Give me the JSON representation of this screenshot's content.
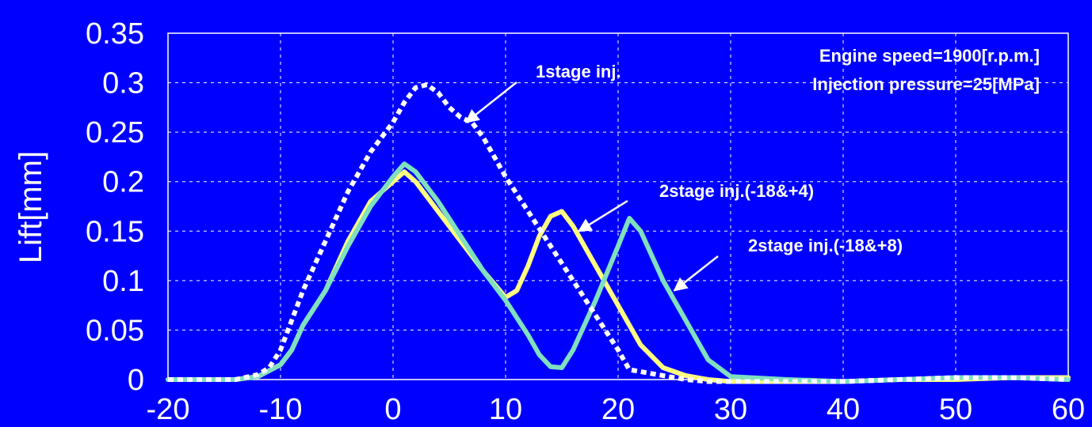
{
  "chart_data": {
    "type": "line",
    "title": "",
    "xlabel": "",
    "ylabel": "Lift[mm]",
    "xlim": [
      -20,
      60
    ],
    "ylim": [
      0,
      0.35
    ],
    "xticks": [
      -20,
      -10,
      0,
      10,
      20,
      30,
      40,
      50,
      60
    ],
    "yticks": [
      0,
      0.05,
      0.1,
      0.15,
      0.2,
      0.25,
      0.3,
      0.35
    ],
    "xtick_labels": [
      "-20",
      "-10",
      "0",
      "10",
      "20",
      "30",
      "40",
      "50",
      "60"
    ],
    "ytick_labels": [
      "0",
      "0.05",
      "0.1",
      "0.15",
      "0.2",
      "0.25",
      "0.3",
      "0.35"
    ],
    "grid": true,
    "conditions": [
      "Engine speed=1900[r.p.m.]",
      "Injection pressure=25[MPa]"
    ],
    "series": [
      {
        "name": "1stage inj.",
        "color": "#ffffff",
        "dashed": true,
        "x": [
          -20,
          -16,
          -14,
          -12,
          -11,
          -10,
          -9,
          -8,
          -6,
          -4,
          -2,
          0,
          1,
          2,
          3,
          4,
          5,
          6,
          7,
          8,
          9,
          10,
          12,
          14,
          16,
          18,
          20,
          21,
          22,
          24,
          26,
          28,
          30,
          35,
          40,
          45,
          50,
          55,
          60
        ],
        "y": [
          0.0,
          0.0,
          0.0,
          0.005,
          0.012,
          0.03,
          0.06,
          0.09,
          0.14,
          0.19,
          0.23,
          0.26,
          0.28,
          0.295,
          0.298,
          0.29,
          0.275,
          0.265,
          0.26,
          0.245,
          0.225,
          0.205,
          0.17,
          0.135,
          0.1,
          0.065,
          0.03,
          0.01,
          0.008,
          0.004,
          0.0,
          -0.002,
          -0.002,
          -0.002,
          -0.002,
          0.0,
          0.002,
          0.002,
          0.0
        ]
      },
      {
        "name": "2stage inj.(-18&+4)",
        "color": "#ffff80",
        "dashed": false,
        "x": [
          -20,
          -16,
          -14,
          -12,
          -10,
          -9,
          -8,
          -6,
          -4,
          -2,
          0,
          1,
          2,
          4,
          6,
          8,
          10,
          11,
          12,
          13,
          14,
          15,
          16,
          18,
          20,
          22,
          24,
          26,
          28,
          30,
          35,
          40,
          45,
          50,
          55,
          60
        ],
        "y": [
          0.0,
          0.0,
          0.0,
          0.003,
          0.015,
          0.03,
          0.055,
          0.09,
          0.14,
          0.18,
          0.2,
          0.21,
          0.2,
          0.17,
          0.14,
          0.11,
          0.083,
          0.09,
          0.115,
          0.145,
          0.165,
          0.17,
          0.155,
          0.115,
          0.075,
          0.035,
          0.012,
          0.004,
          0.0,
          -0.002,
          -0.002,
          -0.002,
          0.0,
          0.0,
          0.002,
          0.002
        ]
      },
      {
        "name": "2stage inj.(-18&+8)",
        "color": "#7fe0c0",
        "dashed": false,
        "x": [
          -20,
          -16,
          -14,
          -12,
          -10,
          -9,
          -8,
          -6,
          -4,
          -2,
          0,
          1,
          2,
          4,
          6,
          8,
          10,
          12,
          13,
          14,
          15,
          16,
          18,
          20,
          21,
          22,
          24,
          26,
          28,
          30,
          35,
          40,
          45,
          50,
          55,
          60
        ],
        "y": [
          0.0,
          0.0,
          0.0,
          0.003,
          0.015,
          0.03,
          0.055,
          0.09,
          0.135,
          0.175,
          0.205,
          0.218,
          0.21,
          0.18,
          0.145,
          0.11,
          0.08,
          0.045,
          0.025,
          0.013,
          0.012,
          0.03,
          0.08,
          0.135,
          0.163,
          0.15,
          0.1,
          0.06,
          0.02,
          0.003,
          0.0,
          -0.002,
          0.0,
          0.002,
          0.002,
          0.0
        ]
      }
    ],
    "annotations": [
      {
        "text": "1stage inj.",
        "series": 0,
        "arrow_to": [
          6.5,
          0.26
        ]
      },
      {
        "text": "2stage inj.(-18&+4)",
        "series": 1,
        "arrow_to": [
          16.5,
          0.15
        ]
      },
      {
        "text": "2stage inj.(-18&+8)",
        "series": 2,
        "arrow_to": [
          25,
          0.09
        ]
      }
    ]
  }
}
